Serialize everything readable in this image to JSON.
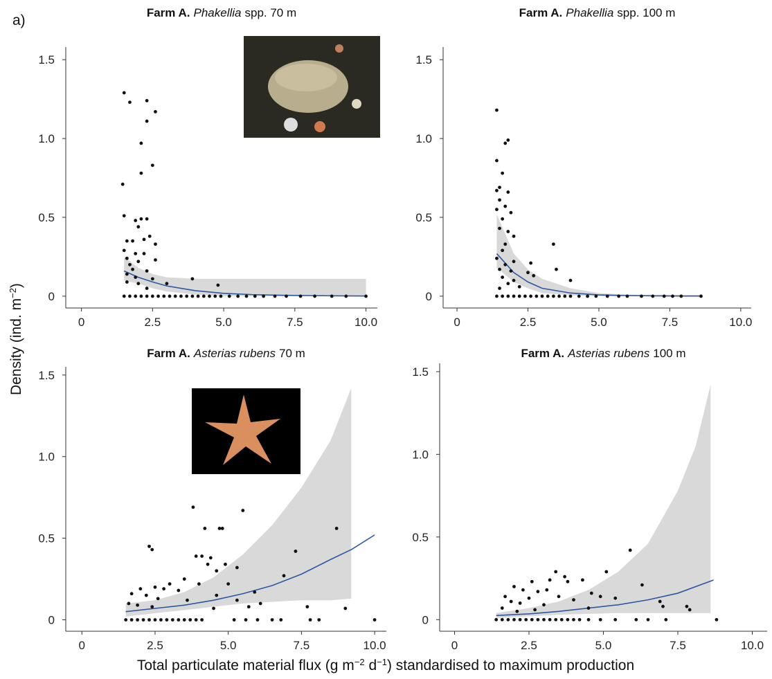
{
  "panel_label": "a)",
  "y_label": [
    "Density (ind. m",
    "−2",
    ")"
  ],
  "x_label": [
    "Total particulate material flux (g m",
    "−2",
    " d",
    "−1",
    ") standardised to maximum production"
  ],
  "chart_data": [
    {
      "type": "scatter",
      "title": [
        "Farm A.",
        "Phakellia",
        "spp. 70 m"
      ],
      "xlim": [
        -0.55,
        10.4
      ],
      "ylim": [
        -0.075,
        1.58
      ],
      "xticks": [
        0,
        2.5,
        {
          "value": 5,
          "label": "5.0"
        },
        7.5,
        {
          "value": 10,
          "label": "10.0"
        }
      ],
      "yticks": [
        0,
        0.5,
        {
          "value": 1,
          "label": "1.0"
        },
        1.5
      ],
      "series": [
        {
          "type": "band",
          "color": "#d9d9d9",
          "x": [
            1.5,
            2,
            2.5,
            3,
            4,
            5,
            6,
            7,
            8,
            9,
            10
          ],
          "lower": [
            0.1,
            0.08,
            0.05,
            0.03,
            0.01,
            0,
            0,
            0,
            0,
            0,
            0
          ],
          "upper": [
            0.25,
            0.18,
            0.14,
            0.12,
            0.11,
            0.11,
            0.11,
            0.11,
            0.11,
            0.11,
            0.11
          ]
        },
        {
          "type": "line",
          "color": "#2b57a3",
          "x": [
            1.5,
            2,
            2.5,
            3,
            4,
            5,
            6,
            7,
            8,
            9,
            10
          ],
          "values": [
            0.16,
            0.12,
            0.09,
            0.065,
            0.035,
            0.018,
            0.01,
            0.006,
            0.004,
            0.002,
            0.001
          ]
        },
        {
          "type": "scatter",
          "color": "#111111",
          "x": [
            1.5,
            1.7,
            2.3,
            2.6,
            2.3,
            2.1,
            2.1,
            2.5,
            1.45,
            1.5,
            1.9,
            2.1,
            2.3,
            2.0,
            2.4,
            2.2,
            1.6,
            1.8,
            2.6,
            1.5,
            1.9,
            2.2,
            1.6,
            2.6,
            1.7,
            2.0,
            1.8,
            2.3,
            1.6,
            1.9,
            2.5,
            1.6,
            2.0,
            3.0,
            3.9,
            4.8,
            2.3,
            1.5,
            1.7,
            1.9,
            2.1,
            2.3,
            2.5,
            2.7,
            2.9,
            3.1,
            3.3,
            3.5,
            3.7,
            3.9,
            4.1,
            4.3,
            4.5,
            4.7,
            4.9,
            5.2,
            5.5,
            5.8,
            6.1,
            6.4,
            6.8,
            7.2,
            7.7,
            8.2,
            8.8,
            9.3,
            10.0
          ],
          "values": [
            1.29,
            1.23,
            1.24,
            1.17,
            1.11,
            0.97,
            0.78,
            0.83,
            0.71,
            0.51,
            0.48,
            0.49,
            0.49,
            0.44,
            0.38,
            0.36,
            0.35,
            0.35,
            0.33,
            0.29,
            0.27,
            0.27,
            0.24,
            0.23,
            0.2,
            0.22,
            0.17,
            0.16,
            0.14,
            0.12,
            0.11,
            0.09,
            0.08,
            0.08,
            0.11,
            0.07,
            0.05,
            0,
            0,
            0,
            0,
            0,
            0,
            0,
            0,
            0,
            0,
            0,
            0,
            0,
            0,
            0,
            0,
            0,
            0,
            0,
            0,
            0,
            0,
            0,
            0,
            0,
            0,
            0,
            0,
            0,
            0
          ]
        }
      ]
    },
    {
      "type": "scatter",
      "title": [
        "Farm A.",
        "Phakellia",
        "spp. 100 m"
      ],
      "xlim": [
        -0.49,
        10.37
      ],
      "ylim": [
        -0.075,
        1.58
      ],
      "xticks": [
        0,
        2.5,
        {
          "value": 5,
          "label": "5.0"
        },
        7.5,
        {
          "value": 10,
          "label": "10.0"
        }
      ],
      "yticks": [
        0,
        0.5,
        {
          "value": 1,
          "label": "1.0"
        },
        1.5
      ],
      "series": [
        {
          "type": "band",
          "color": "#d9d9d9",
          "x": [
            1.4,
            2,
            2.5,
            3,
            4,
            5,
            6,
            7,
            8,
            8.6
          ],
          "lower": [
            0.18,
            0.09,
            0.05,
            0.02,
            0.005,
            0,
            0,
            0,
            0,
            0
          ],
          "upper": [
            0.52,
            0.27,
            0.17,
            0.11,
            0.05,
            0.02,
            0.01,
            0.008,
            0.007,
            0.007
          ]
        },
        {
          "type": "line",
          "color": "#2b57a3",
          "x": [
            1.4,
            2,
            2.5,
            3,
            4,
            5,
            6,
            7,
            8,
            8.6
          ],
          "values": [
            0.27,
            0.15,
            0.09,
            0.05,
            0.02,
            0.008,
            0.004,
            0.002,
            0.001,
            0.001
          ]
        },
        {
          "type": "scatter",
          "color": "#111111",
          "x": [
            1.4,
            1.4,
            1.8,
            1.7,
            1.6,
            1.5,
            1.4,
            1.8,
            1.5,
            1.7,
            1.4,
            1.9,
            1.6,
            1.5,
            1.8,
            2.0,
            1.7,
            1.6,
            1.4,
            2.0,
            1.7,
            1.5,
            1.9,
            2.6,
            2.5,
            2.7,
            1.6,
            2.0,
            1.8,
            3.4,
            3.5,
            4.0,
            2.2,
            1.5,
            1.4,
            1.6,
            1.8,
            2.0,
            2.2,
            2.4,
            2.6,
            2.8,
            3.0,
            3.2,
            3.4,
            3.6,
            3.8,
            4.0,
            4.3,
            4.6,
            4.9,
            5.3,
            5.7,
            6.0,
            6.5,
            6.9,
            7.3,
            7.6,
            7.9,
            8.6
          ],
          "values": [
            1.18,
            0.86,
            0.99,
            0.97,
            0.78,
            0.69,
            0.67,
            0.66,
            0.61,
            0.57,
            0.55,
            0.53,
            0.49,
            0.43,
            0.41,
            0.38,
            0.33,
            0.29,
            0.24,
            0.22,
            0.2,
            0.17,
            0.16,
            0.21,
            0.15,
            0.13,
            0.12,
            0.1,
            0.08,
            0.33,
            0.17,
            0.1,
            0.06,
            0.05,
            0,
            0,
            0,
            0,
            0,
            0,
            0,
            0,
            0,
            0,
            0,
            0,
            0,
            0,
            0,
            0,
            0,
            0,
            0,
            0,
            0,
            0,
            0,
            0,
            0,
            0
          ]
        }
      ]
    },
    {
      "type": "scatter",
      "title": [
        "Farm A.",
        "Asterias rubens",
        "70 m"
      ],
      "xlim": [
        -0.55,
        10.4
      ],
      "ylim": [
        -0.07,
        1.55
      ],
      "xticks": [
        0,
        2.5,
        {
          "value": 5,
          "label": "5.0"
        },
        7.5,
        {
          "value": 10,
          "label": "10.0"
        }
      ],
      "yticks": [
        0,
        0.5,
        {
          "value": 1,
          "label": "1.0"
        },
        1.5
      ],
      "series": [
        {
          "type": "band",
          "color": "#d9d9d9",
          "x": [
            1.5,
            2.5,
            3.5,
            4.5,
            5.5,
            6.5,
            7.5,
            8.5,
            9.2
          ],
          "lower": [
            0.02,
            0.04,
            0.06,
            0.08,
            0.1,
            0.11,
            0.12,
            0.12,
            0.13
          ],
          "upper": [
            0.1,
            0.12,
            0.17,
            0.26,
            0.4,
            0.58,
            0.81,
            1.1,
            1.42
          ]
        },
        {
          "type": "line",
          "color": "#2b57a3",
          "x": [
            1.5,
            2.5,
            3.5,
            4.5,
            5.5,
            6.5,
            7.5,
            8.5,
            9.2,
            10
          ],
          "values": [
            0.05,
            0.07,
            0.09,
            0.12,
            0.16,
            0.21,
            0.28,
            0.37,
            0.43,
            0.52
          ]
        },
        {
          "type": "scatter",
          "color": "#111111",
          "x": [
            3.8,
            5.5,
            2.3,
            2.4,
            4.2,
            4.7,
            4.8,
            8.7,
            7.3,
            3.9,
            4.1,
            4.4,
            4.3,
            4.9,
            4.6,
            5.3,
            6.9,
            3.5,
            3.0,
            4.0,
            5.0,
            2.5,
            2.0,
            2.8,
            3.3,
            1.7,
            2.2,
            4.6,
            5.9,
            2.6,
            3.6,
            5.3,
            1.6,
            1.9,
            2.4,
            6.1,
            4.5,
            5.7,
            9.0,
            7.7,
            1.5,
            1.7,
            1.9,
            2.1,
            2.3,
            2.5,
            2.7,
            2.9,
            3.1,
            3.3,
            3.5,
            3.7,
            3.9,
            4.1,
            5.2,
            5.6,
            6.0,
            6.5,
            6.8,
            7.8,
            8.1,
            10.0
          ],
          "values": [
            0.69,
            0.67,
            0.45,
            0.43,
            0.56,
            0.56,
            0.56,
            0.56,
            0.42,
            0.39,
            0.39,
            0.38,
            0.34,
            0.34,
            0.3,
            0.32,
            0.27,
            0.25,
            0.22,
            0.22,
            0.22,
            0.2,
            0.19,
            0.19,
            0.18,
            0.16,
            0.15,
            0.15,
            0.17,
            0.13,
            0.12,
            0.12,
            0.1,
            0.09,
            0.08,
            0.1,
            0.07,
            0.08,
            0.07,
            0.08,
            0,
            0,
            0,
            0,
            0,
            0,
            0,
            0,
            0,
            0,
            0,
            0,
            0,
            0,
            0,
            0,
            0,
            0,
            0,
            0,
            0,
            0
          ]
        }
      ]
    },
    {
      "type": "scatter",
      "title": [
        "Farm A.",
        "Asterias rubens",
        "100 m"
      ],
      "xlim": [
        -0.5,
        10.5
      ],
      "ylim": [
        -0.07,
        1.55
      ],
      "xticks": [
        0,
        2.5,
        {
          "value": 5,
          "label": "5.0"
        },
        7.5,
        {
          "value": 10,
          "label": "10.0"
        }
      ],
      "yticks": [
        0,
        0.5,
        {
          "value": 1,
          "label": "1.0"
        },
        1.5
      ],
      "series": [
        {
          "type": "band",
          "color": "#d9d9d9",
          "x": [
            1.4,
            2.5,
            3.5,
            4.5,
            5.5,
            6.5,
            7.5,
            8.1,
            8.6
          ],
          "lower": [
            0.01,
            0.02,
            0.03,
            0.035,
            0.04,
            0.04,
            0.04,
            0.04,
            0.04
          ],
          "upper": [
            0.04,
            0.07,
            0.11,
            0.18,
            0.29,
            0.46,
            0.78,
            1.05,
            1.42
          ]
        },
        {
          "type": "line",
          "color": "#2b57a3",
          "x": [
            1.4,
            2.5,
            3.5,
            4.5,
            5.5,
            6.5,
            7.5,
            8.7
          ],
          "values": [
            0.025,
            0.035,
            0.05,
            0.07,
            0.09,
            0.12,
            0.16,
            0.24
          ]
        },
        {
          "type": "scatter",
          "color": "#111111",
          "x": [
            5.9,
            3.4,
            5.1,
            3.7,
            2.6,
            3.2,
            4.3,
            3.8,
            1.7,
            2.0,
            2.3,
            2.8,
            3.1,
            4.6,
            6.3,
            2.5,
            3.5,
            1.9,
            2.2,
            4.0,
            4.9,
            5.4,
            3.0,
            1.6,
            6.9,
            7.0,
            7.8,
            7.9,
            2.7,
            4.5,
            2.1,
            1.4,
            1.6,
            1.8,
            2.0,
            2.2,
            2.4,
            2.6,
            2.8,
            3.0,
            3.2,
            3.4,
            3.6,
            3.8,
            4.0,
            4.2,
            4.5,
            4.9,
            5.4,
            6.1,
            6.5,
            7.1,
            8.8
          ],
          "values": [
            0.42,
            0.29,
            0.29,
            0.26,
            0.23,
            0.24,
            0.24,
            0.23,
            0.14,
            0.2,
            0.18,
            0.17,
            0.18,
            0.16,
            0.21,
            0.13,
            0.14,
            0.11,
            0.1,
            0.12,
            0.14,
            0.13,
            0.09,
            0.07,
            0.11,
            0.08,
            0.08,
            0.06,
            0.06,
            0.07,
            0.05,
            0,
            0,
            0,
            0,
            0,
            0,
            0,
            0,
            0,
            0,
            0,
            0,
            0,
            0,
            0,
            0,
            0,
            0,
            0,
            0,
            0,
            0
          ]
        }
      ]
    }
  ]
}
